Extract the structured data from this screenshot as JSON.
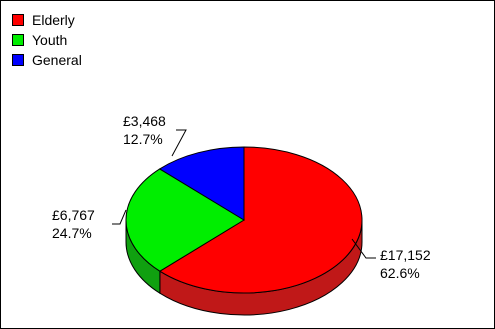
{
  "chart_data": {
    "type": "pie",
    "title": "",
    "legend_position": "top-left",
    "categories": [
      "Elderly",
      "Youth",
      "General"
    ],
    "values": [
      17152,
      6767,
      3468
    ],
    "value_labels": [
      "£17,152",
      "£6,767",
      "£3,468"
    ],
    "percent_labels": [
      "62.6%",
      "24.7%",
      "12.7%"
    ],
    "colors": [
      "#ff0000",
      "#00ee00",
      "#0000ff"
    ],
    "side_colors": [
      "#c01818",
      "#10a010",
      "#0000a0"
    ],
    "style": "3d"
  }
}
